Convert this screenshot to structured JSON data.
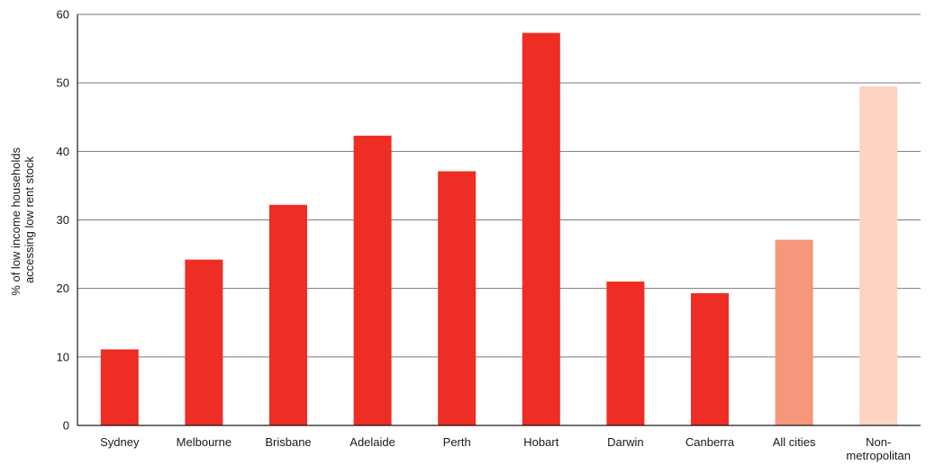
{
  "chart_data": {
    "type": "bar",
    "title": "",
    "xlabel": "",
    "ylabel_lines": [
      "% of low income households",
      "accessing low rent stock"
    ],
    "ylim": [
      0,
      60
    ],
    "yticks": [
      "0",
      "10",
      "20",
      "30",
      "40",
      "50",
      "60"
    ],
    "grid": true,
    "categories": [
      [
        "Sydney"
      ],
      [
        "Melbourne"
      ],
      [
        "Brisbane"
      ],
      [
        "Adelaide"
      ],
      [
        "Perth"
      ],
      [
        "Hobart"
      ],
      [
        "Darwin"
      ],
      [
        "Canberra"
      ],
      [
        "All cities"
      ],
      [
        "Non-",
        "metropolitan"
      ]
    ],
    "values": [
      11.1,
      24.2,
      32.2,
      42.3,
      37.1,
      57.3,
      21.0,
      19.3,
      27.1,
      49.5
    ],
    "colors": [
      "#ee2d24",
      "#ee2d24",
      "#ee2d24",
      "#ee2d24",
      "#ee2d24",
      "#ee2d24",
      "#ee2d24",
      "#ee2d24",
      "#f6967a",
      "#fdd3c3"
    ]
  }
}
